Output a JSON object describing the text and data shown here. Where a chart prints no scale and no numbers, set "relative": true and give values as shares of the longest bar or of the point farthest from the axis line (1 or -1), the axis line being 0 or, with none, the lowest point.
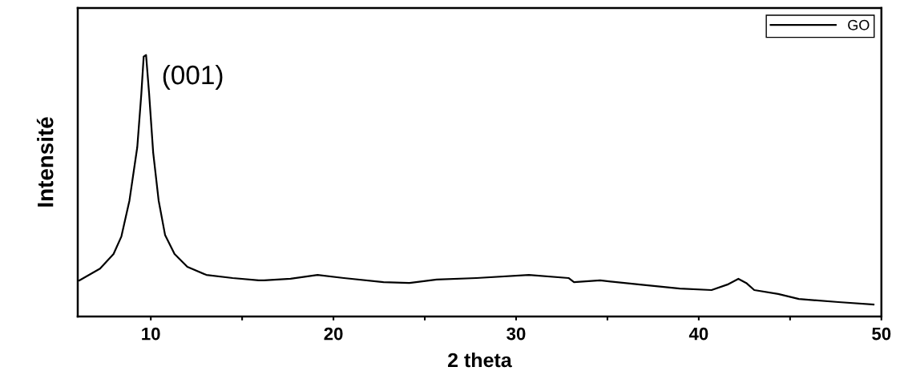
{
  "chart_data": {
    "type": "line",
    "xlabel": "2 theta",
    "ylabel": "Intensité",
    "relative": true,
    "xlim": [
      6,
      50
    ],
    "xticks": [
      10,
      {
        "value": 15,
        "label": null
      },
      20,
      {
        "value": 25,
        "label": null
      },
      30,
      {
        "value": 35,
        "label": null
      },
      40,
      {
        "value": 45,
        "label": null
      },
      50
    ],
    "grid": false,
    "legend": "top right",
    "marker": "none",
    "line_style": "solid",
    "annotations": [
      {
        "text": "(001)",
        "x": 9.74,
        "y": 1.0
      }
    ],
    "series": [
      {
        "name": "GO",
        "color": "#000000",
        "x": [
          6.09,
          7.22,
          7.96,
          8.39,
          8.83,
          9.26,
          9.48,
          9.61,
          9.74,
          9.91,
          10.13,
          10.43,
          10.78,
          11.3,
          12.0,
          13.04,
          14.48,
          15.91,
          16.2,
          17.65,
          19.13,
          20.57,
          22.74,
          24.17,
          25.65,
          27.83,
          30.7,
          32.87,
          33.17,
          34.6,
          36.78,
          38.96,
          40.7,
          41.57,
          42.17,
          42.6,
          43.04,
          44.35,
          45.48,
          47.65,
          49.57
        ],
        "values": [
          0.138,
          0.183,
          0.239,
          0.306,
          0.443,
          0.648,
          0.85,
          0.994,
          1.0,
          0.85,
          0.627,
          0.443,
          0.312,
          0.239,
          0.19,
          0.159,
          0.147,
          0.138,
          0.138,
          0.144,
          0.159,
          0.147,
          0.131,
          0.128,
          0.141,
          0.147,
          0.159,
          0.147,
          0.131,
          0.138,
          0.122,
          0.107,
          0.101,
          0.122,
          0.144,
          0.128,
          0.101,
          0.086,
          0.067,
          0.055,
          0.046
        ]
      }
    ]
  }
}
